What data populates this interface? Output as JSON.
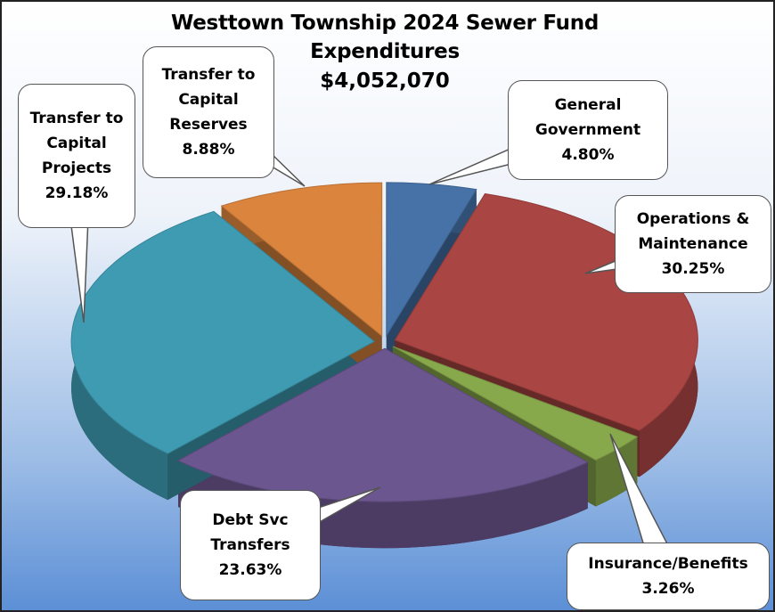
{
  "chart_data": {
    "type": "pie",
    "title": "Westtown Township 2024 Sewer Fund Expenditures",
    "subtitle": "$4,052,070",
    "categories": [
      "General Government",
      "Operations & Maintenance",
      "Insurance/Benefits",
      "Debt Svc Transfers",
      "Transfer to Capital Projects",
      "Transfer to Capital Reserves"
    ],
    "values": [
      4.8,
      30.25,
      3.26,
      23.63,
      29.18,
      8.88
    ],
    "value_labels": [
      "4.80%",
      "30.25%",
      "3.26%",
      "23.63%",
      "29.18%",
      "8.88%"
    ],
    "colors": [
      "#4672a8",
      "#a94543",
      "#88a84c",
      "#6c568f",
      "#3f9bb2",
      "#da843e"
    ]
  }
}
